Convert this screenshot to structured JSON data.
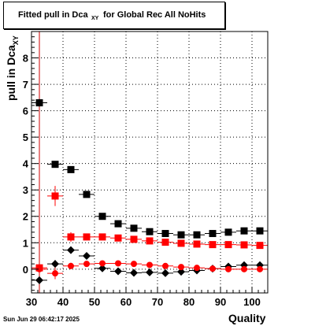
{
  "title": {
    "prefix": "Fitted pull in Dca",
    "subscript": "XY",
    "suffix": "for Global Rec All NoHits"
  },
  "chart_data": {
    "type": "scatter",
    "title": "Fitted pull in Dca_XY for Global Rec All NoHits",
    "xlabel": "Quality",
    "ylabel_main": "pull in Dca",
    "ylabel_sub": "XY",
    "xlim": [
      30,
      105
    ],
    "ylim": [
      -0.9,
      9.0
    ],
    "grid": true,
    "x_ticks": [
      "30",
      "40",
      "50",
      "60",
      "70",
      "80",
      "90",
      "100"
    ],
    "y_ticks": [
      "0",
      "1",
      "2",
      "3",
      "4",
      "5",
      "6",
      "7",
      "8"
    ],
    "reference_line_x": 32.5,
    "series": [
      {
        "marker": "square",
        "color": "#000000",
        "x": [
          32.5,
          37.5,
          42.5,
          47.5,
          52.5,
          57.5,
          62.5,
          67.5,
          72.5,
          77.5,
          82.5,
          87.5,
          92.5,
          97.5,
          102.5
        ],
        "y": [
          6.3,
          3.97,
          3.77,
          2.83,
          2.0,
          1.72,
          1.55,
          1.42,
          1.35,
          1.3,
          1.3,
          1.35,
          1.4,
          1.45,
          1.45
        ],
        "yerr": [
          0.15,
          0.12,
          0.08,
          0.06,
          0.04,
          0.04,
          0.03,
          0.03,
          0.03,
          0.03,
          0.03,
          0.03,
          0.03,
          0.03,
          0.03
        ]
      },
      {
        "marker": "square",
        "color": "#ff0000",
        "x": [
          32.5,
          37.5,
          42.5,
          47.5,
          52.5,
          57.5,
          62.5,
          67.5,
          72.5,
          77.5,
          82.5,
          87.5,
          92.5,
          97.5,
          102.5
        ],
        "y": [
          0.05,
          2.77,
          1.22,
          1.22,
          1.22,
          1.18,
          1.13,
          1.07,
          1.02,
          0.98,
          0.95,
          0.93,
          0.93,
          0.92,
          0.9
        ],
        "yerr": [
          0.1,
          0.38,
          0.18,
          0.12,
          0.08,
          0.06,
          0.05,
          0.04,
          0.04,
          0.03,
          0.03,
          0.03,
          0.03,
          0.03,
          0.03
        ]
      },
      {
        "marker": "diamond",
        "color": "#000000",
        "x": [
          32.5,
          37.5,
          42.5,
          47.5,
          52.5,
          57.5,
          62.5,
          67.5,
          72.5,
          77.5,
          82.5,
          87.5,
          92.5,
          97.5,
          102.5
        ],
        "y": [
          -0.42,
          0.2,
          0.72,
          0.5,
          0.03,
          -0.08,
          -0.14,
          -0.12,
          -0.15,
          -0.1,
          -0.05,
          0.02,
          0.1,
          0.15,
          0.15
        ],
        "yerr": [
          0.15,
          0.15,
          0.1,
          0.08,
          0.05,
          0.05,
          0.04,
          0.04,
          0.04,
          0.04,
          0.04,
          0.04,
          0.04,
          0.04,
          0.04
        ]
      },
      {
        "marker": "circle",
        "color": "#ff0000",
        "x": [
          32.5,
          37.5,
          42.5,
          47.5,
          52.5,
          57.5,
          62.5,
          67.5,
          72.5,
          77.5,
          82.5,
          87.5,
          92.5,
          97.5,
          102.5
        ],
        "y": [
          0.0,
          -0.16,
          0.12,
          0.2,
          0.22,
          0.22,
          0.2,
          0.16,
          0.12,
          0.08,
          0.05,
          0.02,
          0.0,
          0.0,
          0.0
        ],
        "yerr": [
          0.1,
          0.22,
          0.12,
          0.08,
          0.05,
          0.04,
          0.04,
          0.03,
          0.03,
          0.03,
          0.03,
          0.03,
          0.03,
          0.03,
          0.03
        ]
      }
    ]
  },
  "footer": {
    "datestamp": "Sun Jun 29 06:42:17 2025"
  }
}
